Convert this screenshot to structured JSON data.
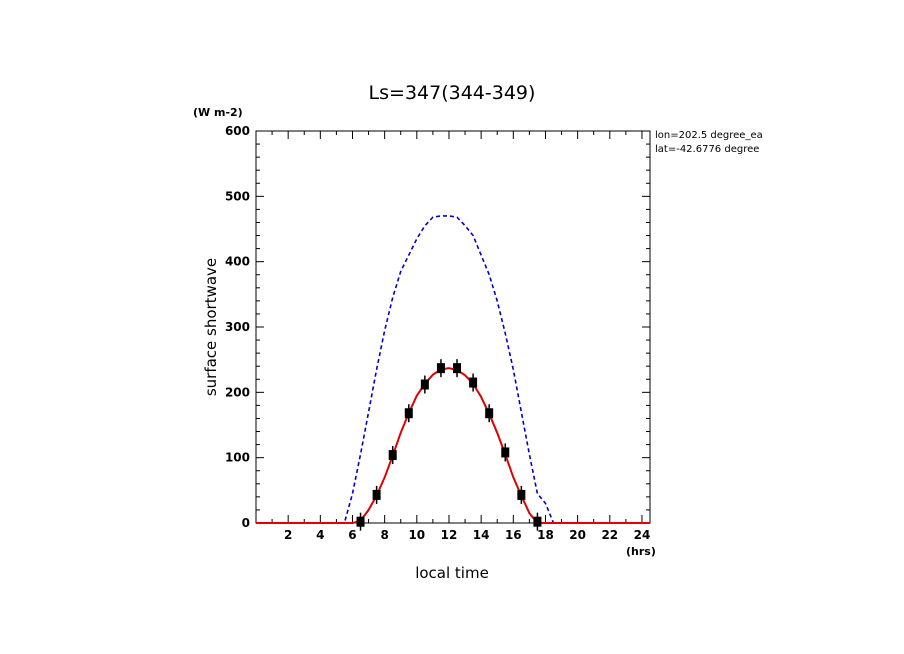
{
  "chart_data": {
    "type": "line",
    "title": "Ls=347(344-349)",
    "xlabel": "local time",
    "ylabel": "surface shortwave",
    "x_unit": "(hrs)",
    "y_unit": "(W m-2)",
    "xlim": [
      0,
      24.5
    ],
    "ylim": [
      0,
      600
    ],
    "x_ticks": [
      2,
      4,
      6,
      8,
      10,
      12,
      14,
      16,
      18,
      20,
      22,
      24
    ],
    "y_ticks": [
      0,
      100,
      200,
      300,
      400,
      500,
      600
    ],
    "annotations": [
      "lon=202.5 degree_ea",
      "lat=-42.6776 degree"
    ],
    "grid": false,
    "series": [
      {
        "style": "dashed",
        "color": "#0000cc",
        "x": [
          0,
          5.5,
          6.0,
          6.5,
          7.0,
          7.5,
          8.0,
          8.5,
          9.0,
          9.5,
          10.0,
          10.5,
          11.0,
          11.5,
          12.0,
          12.5,
          13.0,
          13.5,
          14.0,
          14.5,
          15.0,
          15.5,
          16.0,
          16.5,
          17.0,
          17.5,
          18.0,
          18.5,
          24.5
        ],
        "y": [
          0,
          0,
          45,
          105,
          170,
          235,
          295,
          345,
          385,
          410,
          435,
          455,
          468,
          470,
          470,
          468,
          455,
          440,
          410,
          380,
          340,
          290,
          235,
          170,
          105,
          45,
          30,
          0,
          0
        ]
      },
      {
        "style": "solid",
        "color": "#e00000",
        "x": [
          0,
          6.0,
          6.5,
          7.0,
          7.5,
          8.0,
          8.5,
          9.0,
          9.5,
          10.0,
          10.5,
          11.0,
          11.5,
          12.0,
          12.5,
          13.0,
          13.5,
          14.0,
          14.5,
          15.0,
          15.5,
          16.0,
          16.5,
          17.0,
          17.5,
          24.5
        ],
        "y": [
          0,
          0,
          3,
          20,
          42,
          70,
          103,
          138,
          168,
          195,
          213,
          227,
          235,
          237,
          234,
          226,
          213,
          193,
          167,
          138,
          105,
          70,
          42,
          15,
          0,
          0
        ]
      },
      {
        "style": "markers",
        "color": "#000000",
        "x": [
          6.5,
          7.5,
          8.5,
          9.5,
          10.5,
          11.5,
          12.5,
          13.5,
          14.5,
          15.5,
          16.5,
          17.5
        ],
        "y": [
          2,
          43,
          104,
          168,
          212,
          237,
          237,
          215,
          168,
          108,
          43,
          2
        ]
      }
    ]
  }
}
